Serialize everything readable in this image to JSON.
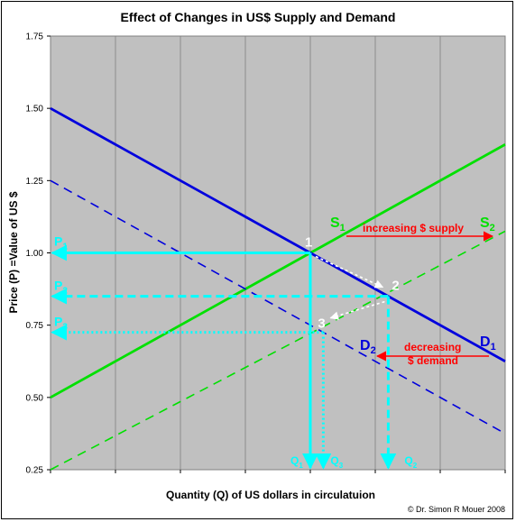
{
  "chart_data": {
    "type": "line",
    "title": "Effect of Changes in US$ Supply and Demand",
    "xlabel": "Quantity (Q) of US dollars in circulatuion",
    "ylabel": "Price (P) =Value of US $",
    "credit": "© Dr. Simon R Mouer 2008",
    "ylim": [
      0.25,
      1.75
    ],
    "xlim": [
      0,
      7
    ],
    "yticks": [
      "0.25",
      "0.50",
      "0.75",
      "1.00",
      "1.25",
      "1.50",
      "1.75"
    ],
    "x_ticks_labeled": false,
    "grid": "vertical lines at each x unit",
    "background": "#c0c0c0",
    "series": [
      {
        "name": "S1",
        "style": "solid",
        "color": "#00e000",
        "points": [
          [
            0,
            0.5
          ],
          [
            7,
            1.375
          ]
        ]
      },
      {
        "name": "S2",
        "style": "dashed",
        "color": "#00e000",
        "points": [
          [
            0,
            0.25
          ],
          [
            7,
            1.075
          ]
        ]
      },
      {
        "name": "D1",
        "style": "solid",
        "color": "#0000dd",
        "points": [
          [
            0,
            1.5
          ],
          [
            7,
            0.625
          ]
        ]
      },
      {
        "name": "D2",
        "style": "dashed",
        "color": "#0000dd",
        "points": [
          [
            0,
            1.25
          ],
          [
            7,
            0.375
          ]
        ]
      }
    ],
    "equilibria": [
      {
        "label": "1",
        "q": 4.0,
        "p": 1.0,
        "price_label": "P1",
        "qty_label": "Q1",
        "line_style": "solid"
      },
      {
        "label": "2",
        "q": 5.2,
        "p": 0.85,
        "price_label": "P2",
        "qty_label": "Q2",
        "line_style": "dashed"
      },
      {
        "label": "3",
        "q": 4.2,
        "p": 0.725,
        "price_label": "P3",
        "qty_label": "Q3",
        "line_style": "dotted"
      }
    ],
    "annotations": [
      {
        "text": "increasing  $ supply",
        "color": "#ff0000"
      },
      {
        "text": "decreasing",
        "color": "#ff0000"
      },
      {
        "text": "$ demand",
        "color": "#ff0000"
      }
    ],
    "colors": {
      "guide": "#00ffff",
      "supply": "#00e000",
      "demand": "#0000dd",
      "shift": "#ff0000",
      "shift_arrow_white": "#ffffff"
    }
  }
}
